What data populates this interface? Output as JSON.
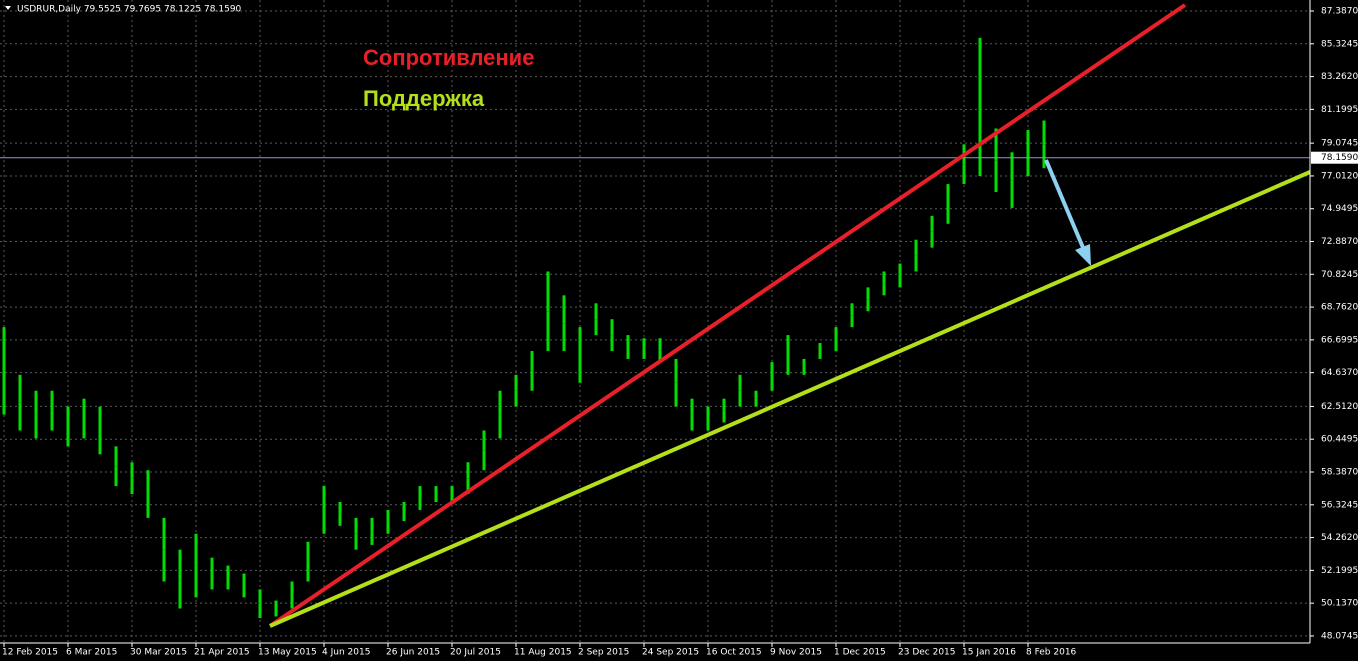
{
  "chart_data": {
    "type": "ohlc-range",
    "title": "USDRUR,Daily  79.5525 79.7695 78.1225 78.1590",
    "annotations": [
      "Сопротивление",
      "Поддержка"
    ],
    "current_price": {
      "value": 78.159,
      "label": "78.1590"
    },
    "color": "#00e000",
    "grid": true,
    "ylim": [
      47.63,
      88.08
    ],
    "yticks": [
      {
        "value": 48.0745,
        "label": "48.0745"
      },
      {
        "value": 50.137,
        "label": "50.1370"
      },
      {
        "value": 52.1995,
        "label": "52.1995"
      },
      {
        "value": 54.262,
        "label": "54.2620"
      },
      {
        "value": 56.3245,
        "label": "56.3245"
      },
      {
        "value": 58.387,
        "label": "58.3870"
      },
      {
        "value": 60.4495,
        "label": "60.4495"
      },
      {
        "value": 62.512,
        "label": "62.5120"
      },
      {
        "value": 64.637,
        "label": "64.6370"
      },
      {
        "value": 66.6995,
        "label": "66.6995"
      },
      {
        "value": 68.762,
        "label": "68.7620"
      },
      {
        "value": 70.8245,
        "label": "70.8245"
      },
      {
        "value": 72.887,
        "label": "72.8870"
      },
      {
        "value": 74.9495,
        "label": "74.9495"
      },
      {
        "value": 77.012,
        "label": "77.0120"
      },
      {
        "value": 79.0745,
        "label": "79.0745"
      },
      {
        "value": 81.1995,
        "label": "81.1995"
      },
      {
        "value": 83.262,
        "label": "83.2620"
      },
      {
        "value": 85.3245,
        "label": "85.3245"
      },
      {
        "value": 87.387,
        "label": "87.3870"
      }
    ],
    "categories": [
      "12 Feb 2015",
      null,
      null,
      null,
      "6 Mar 2015",
      null,
      null,
      null,
      "30 Mar 2015",
      null,
      null,
      null,
      "21 Apr 2015",
      null,
      null,
      null,
      "13 May 2015",
      null,
      null,
      null,
      "4 Jun 2015",
      null,
      null,
      null,
      "26 Jun 2015",
      null,
      null,
      null,
      "20 Jul 2015",
      null,
      null,
      null,
      "11 Aug 2015",
      null,
      null,
      null,
      "2 Sep 2015",
      null,
      null,
      null,
      "24 Sep 2015",
      null,
      null,
      null,
      "16 Oct 2015",
      null,
      null,
      null,
      "9 Nov 2015",
      null,
      null,
      null,
      "1 Dec 2015",
      null,
      null,
      null,
      "23 Dec 2015",
      null,
      null,
      null,
      "15 Jan 2016",
      null,
      null,
      null,
      "8 Feb 2016",
      null,
      null,
      null,
      null,
      null,
      null,
      null,
      null,
      null,
      null,
      null,
      null,
      null,
      null,
      null,
      null,
      null
    ],
    "high": [
      67.5,
      64.5,
      63.5,
      63.5,
      62.5,
      63.0,
      62.5,
      60.0,
      59.0,
      58.5,
      55.5,
      53.5,
      54.5,
      53.0,
      52.5,
      52.0,
      51.0,
      50.3,
      51.5,
      54.0,
      57.5,
      56.5,
      55.5,
      55.5,
      56.0,
      56.5,
      57.5,
      57.5,
      57.5,
      59.0,
      61.0,
      63.5,
      64.5,
      66.0,
      71.0,
      69.5,
      67.5,
      69.0,
      68.0,
      67.0,
      66.8,
      66.8,
      65.5,
      63.0,
      62.5,
      63.0,
      64.5,
      63.5,
      65.3,
      67.0,
      65.5,
      66.5,
      67.5,
      69.0,
      70.0,
      71.0,
      71.5,
      73.0,
      74.5,
      76.5,
      79.0,
      85.7,
      80.0,
      78.5,
      79.9,
      80.5,
      null,
      null,
      null,
      null,
      null,
      null,
      null,
      null,
      null,
      null,
      null,
      null,
      null,
      null,
      null,
      null
    ],
    "low": [
      62.0,
      61.0,
      60.5,
      61.0,
      60.0,
      60.5,
      59.5,
      57.5,
      57.0,
      55.5,
      51.5,
      49.8,
      50.5,
      51.0,
      51.0,
      50.5,
      49.2,
      49.3,
      49.8,
      51.5,
      54.5,
      55.0,
      53.5,
      53.8,
      54.5,
      55.3,
      56.0,
      56.5,
      56.5,
      57.0,
      58.5,
      60.5,
      62.5,
      63.5,
      66.0,
      66.0,
      64.0,
      67.0,
      66.0,
      65.5,
      65.5,
      65.3,
      62.5,
      61.0,
      61.0,
      61.5,
      62.5,
      62.5,
      63.5,
      64.5,
      64.5,
      65.5,
      66.0,
      67.5,
      68.5,
      69.5,
      70.0,
      71.0,
      72.5,
      74.0,
      76.5,
      77.0,
      76.0,
      75.0,
      77.0,
      77.5,
      null,
      null,
      null,
      null,
      null,
      null,
      null,
      null,
      null,
      null,
      null,
      null,
      null,
      null,
      null,
      null
    ]
  }
}
